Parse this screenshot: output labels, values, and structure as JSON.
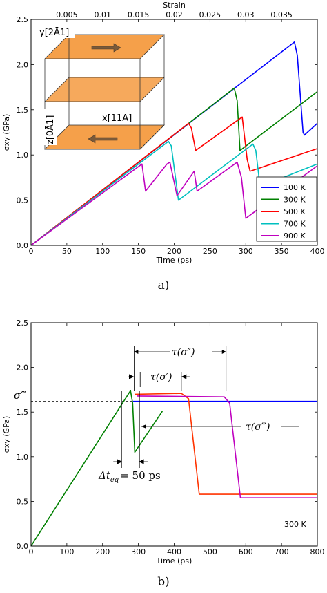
{
  "chart_data": [
    {
      "type": "line",
      "panel_label": "a)",
      "xlabel": "Time (ps)",
      "ylabel": "σxy (GPa)",
      "top_xlabel": "Strain",
      "xlim": [
        0,
        400
      ],
      "ylim": [
        0,
        2.5
      ],
      "x_ticks": [
        0,
        50,
        100,
        150,
        200,
        250,
        300,
        350,
        400
      ],
      "y_ticks": [
        0.0,
        0.5,
        1.0,
        1.5,
        2.0,
        2.5
      ],
      "top_ticks": [
        {
          "time": 50,
          "label": "0.005"
        },
        {
          "time": 100,
          "label": "0.01"
        },
        {
          "time": 150,
          "label": "0.015"
        },
        {
          "time": 200,
          "label": "0.02"
        },
        {
          "time": 250,
          "label": "0.025"
        },
        {
          "time": 300,
          "label": "0.03"
        },
        {
          "time": 350,
          "label": "0.035"
        }
      ],
      "legend_placement": "bottom-right",
      "series": [
        {
          "name": "100 K",
          "color": "#0000ff",
          "points": [
            [
              0,
              0
            ],
            [
              368,
              2.25
            ],
            [
              372,
              2.1
            ],
            [
              380,
              1.25
            ],
            [
              382,
              1.22
            ],
            [
              400,
              1.35
            ]
          ]
        },
        {
          "name": "300 K",
          "color": "#008000",
          "points": [
            [
              0,
              0
            ],
            [
              284,
              1.74
            ],
            [
              288,
              1.6
            ],
            [
              292,
              1.05
            ],
            [
              400,
              1.7
            ]
          ]
        },
        {
          "name": "500 K",
          "color": "#ff0000",
          "points": [
            [
              0,
              0
            ],
            [
              220,
              1.35
            ],
            [
              224,
              1.3
            ],
            [
              230,
              1.05
            ],
            [
              295,
              1.42
            ],
            [
              302,
              0.95
            ],
            [
              306,
              0.82
            ],
            [
              400,
              1.07
            ]
          ]
        },
        {
          "name": "700 K",
          "color": "#00bfbf",
          "points": [
            [
              0,
              0
            ],
            [
              192,
              1.15
            ],
            [
              196,
              1.1
            ],
            [
              206,
              0.5
            ],
            [
              310,
              1.12
            ],
            [
              314,
              1.05
            ],
            [
              320,
              0.65
            ],
            [
              400,
              0.9
            ]
          ]
        },
        {
          "name": "900 K",
          "color": "#bf00bf",
          "points": [
            [
              0,
              0
            ],
            [
              155,
              0.9
            ],
            [
              160,
              0.6
            ],
            [
              190,
              0.9
            ],
            [
              194,
              0.92
            ],
            [
              204,
              0.55
            ],
            [
              228,
              0.82
            ],
            [
              232,
              0.6
            ],
            [
              288,
              0.92
            ],
            [
              294,
              0.75
            ],
            [
              300,
              0.3
            ],
            [
              400,
              0.88
            ]
          ]
        }
      ],
      "inset": {
        "y_label": "y[2Ā1]",
        "x_label": "x[11Ā]",
        "z_label": "z[0Ā1]"
      }
    },
    {
      "type": "line",
      "panel_label": "b)",
      "xlabel": "Time (ps)",
      "ylabel": "σxy (GPa)",
      "xlim": [
        0,
        800
      ],
      "ylim": [
        0,
        2.5
      ],
      "x_ticks": [
        0,
        100,
        200,
        300,
        400,
        500,
        600,
        700,
        800
      ],
      "y_ticks": [
        0.0,
        0.5,
        1.0,
        1.5,
        2.0,
        2.5
      ],
      "temperature_label": "300 K",
      "series": [
        {
          "color": "#0000ff",
          "points": [
            [
              285,
              1.62
            ],
            [
              800,
              1.62
            ]
          ]
        },
        {
          "color": "#ff3300",
          "points": [
            [
              290,
              1.7
            ],
            [
              420,
              1.71
            ],
            [
              440,
              1.65
            ],
            [
              470,
              0.58
            ],
            [
              800,
              0.58
            ]
          ]
        },
        {
          "color": "#bf00bf",
          "points": [
            [
              295,
              1.68
            ],
            [
              540,
              1.67
            ],
            [
              555,
              1.6
            ],
            [
              585,
              0.54
            ],
            [
              800,
              0.54
            ]
          ]
        },
        {
          "color": "#008000",
          "points": [
            [
              0,
              0
            ],
            [
              278,
              1.74
            ],
            [
              284,
              1.6
            ],
            [
              290,
              1.05
            ],
            [
              367,
              1.51
            ]
          ]
        }
      ],
      "annotations": {
        "sigma_triple": "σ‴",
        "sigma_ref_value": 1.62,
        "tau_double": "τ(σ″)",
        "tau_single": "τ(σ′)",
        "tau_triple": "τ(σ‴)",
        "delta_t_lhs": "Δt",
        "delta_t_sub": "eq",
        "delta_t_rhs": "= 50 ps"
      }
    }
  ]
}
